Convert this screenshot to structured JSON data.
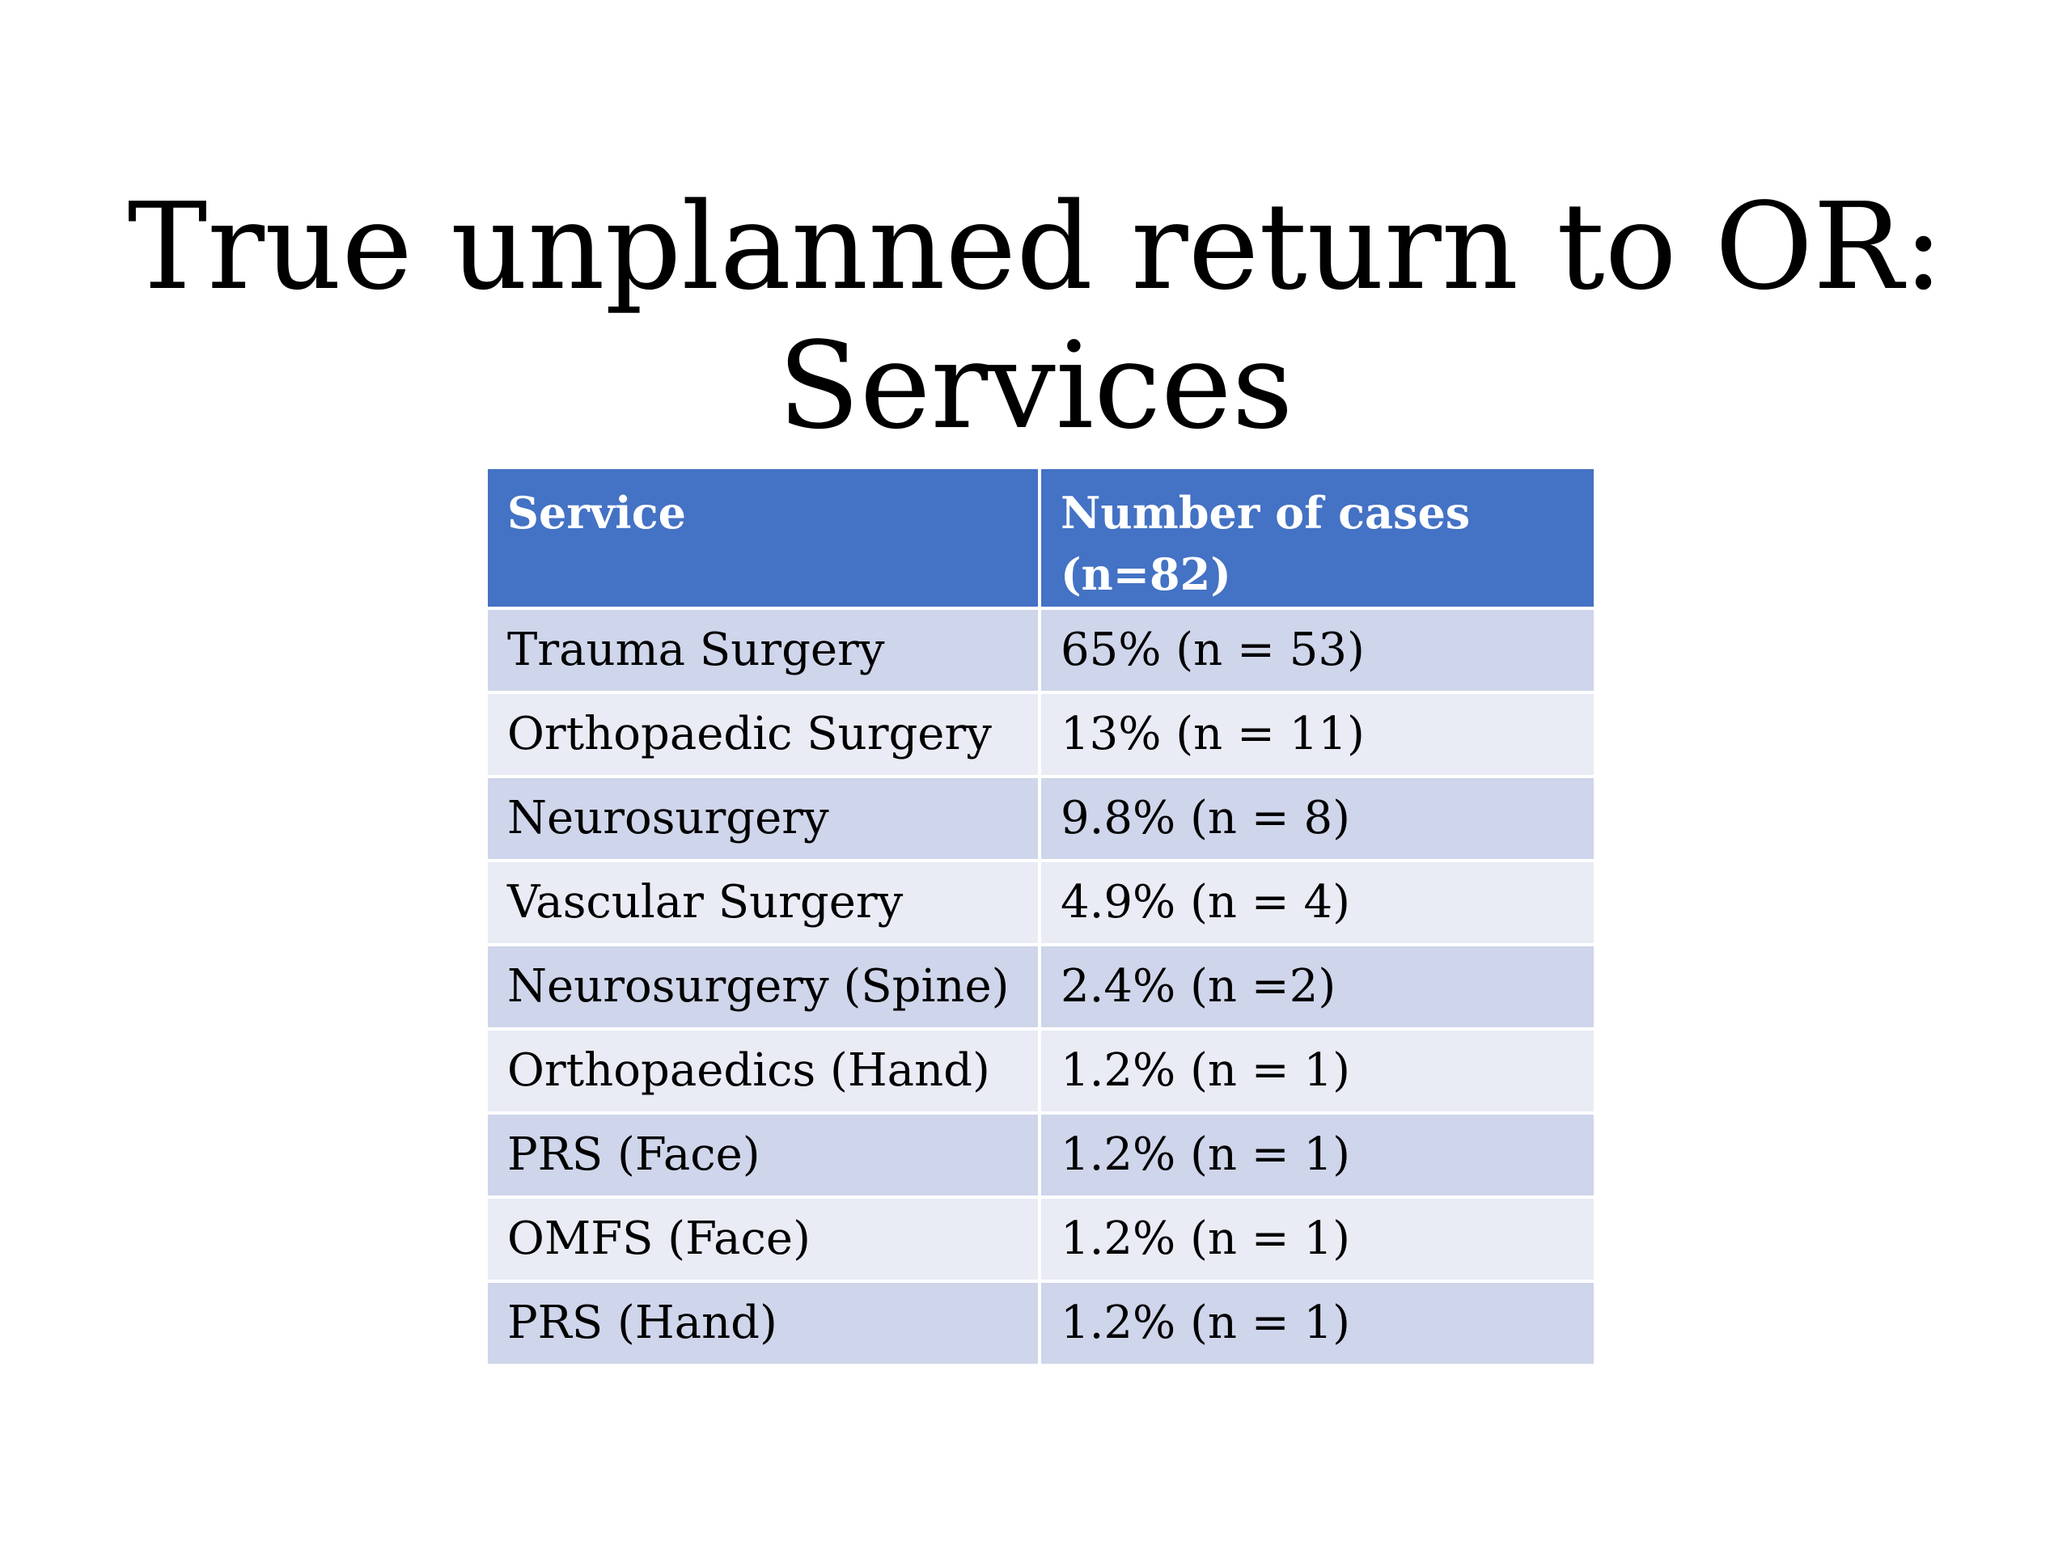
{
  "title": {
    "line1": "True unplanned return to OR:",
    "line2": "Services"
  },
  "table": {
    "headers": [
      "Service",
      "Number of cases (n=82)"
    ],
    "rows": [
      [
        "Trauma Surgery",
        "65% (n = 53)"
      ],
      [
        "Orthopaedic Surgery",
        "13% (n = 11)"
      ],
      [
        "Neurosurgery",
        "9.8% (n = 8)"
      ],
      [
        "Vascular Surgery",
        "4.9% (n = 4)"
      ],
      [
        "Neurosurgery (Spine)",
        "2.4% (n =2)"
      ],
      [
        "Orthopaedics (Hand)",
        "1.2% (n = 1)"
      ],
      [
        "PRS (Face)",
        "1.2% (n = 1)"
      ],
      [
        "OMFS (Face)",
        "1.2% (n = 1)"
      ],
      [
        "PRS (Hand)",
        "1.2% (n = 1)"
      ]
    ]
  },
  "colors": {
    "header": "#4472c4",
    "row_dark": "#cfd5ea",
    "row_light": "#e9ebf5"
  }
}
